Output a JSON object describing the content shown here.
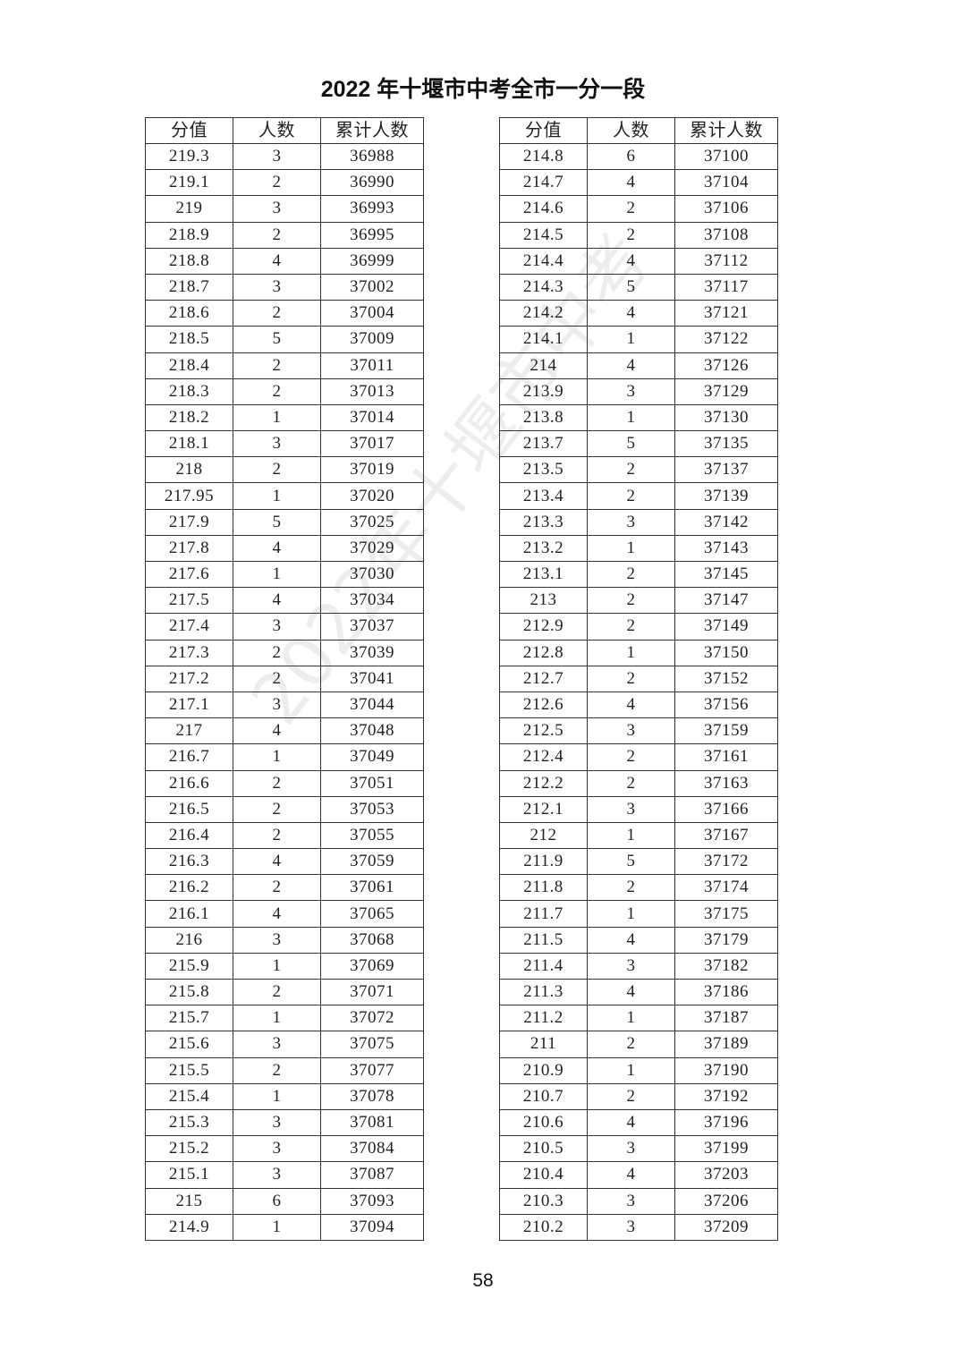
{
  "title": "2022 年十堰市中考全市一分一段",
  "page_number": "58",
  "watermark": "2022年十堰市中考",
  "headers": [
    "分值",
    "人数",
    "累计人数"
  ],
  "left_table": [
    [
      "219.3",
      "3",
      "36988"
    ],
    [
      "219.1",
      "2",
      "36990"
    ],
    [
      "219",
      "3",
      "36993"
    ],
    [
      "218.9",
      "2",
      "36995"
    ],
    [
      "218.8",
      "4",
      "36999"
    ],
    [
      "218.7",
      "3",
      "37002"
    ],
    [
      "218.6",
      "2",
      "37004"
    ],
    [
      "218.5",
      "5",
      "37009"
    ],
    [
      "218.4",
      "2",
      "37011"
    ],
    [
      "218.3",
      "2",
      "37013"
    ],
    [
      "218.2",
      "1",
      "37014"
    ],
    [
      "218.1",
      "3",
      "37017"
    ],
    [
      "218",
      "2",
      "37019"
    ],
    [
      "217.95",
      "1",
      "37020"
    ],
    [
      "217.9",
      "5",
      "37025"
    ],
    [
      "217.8",
      "4",
      "37029"
    ],
    [
      "217.6",
      "1",
      "37030"
    ],
    [
      "217.5",
      "4",
      "37034"
    ],
    [
      "217.4",
      "3",
      "37037"
    ],
    [
      "217.3",
      "2",
      "37039"
    ],
    [
      "217.2",
      "2",
      "37041"
    ],
    [
      "217.1",
      "3",
      "37044"
    ],
    [
      "217",
      "4",
      "37048"
    ],
    [
      "216.7",
      "1",
      "37049"
    ],
    [
      "216.6",
      "2",
      "37051"
    ],
    [
      "216.5",
      "2",
      "37053"
    ],
    [
      "216.4",
      "2",
      "37055"
    ],
    [
      "216.3",
      "4",
      "37059"
    ],
    [
      "216.2",
      "2",
      "37061"
    ],
    [
      "216.1",
      "4",
      "37065"
    ],
    [
      "216",
      "3",
      "37068"
    ],
    [
      "215.9",
      "1",
      "37069"
    ],
    [
      "215.8",
      "2",
      "37071"
    ],
    [
      "215.7",
      "1",
      "37072"
    ],
    [
      "215.6",
      "3",
      "37075"
    ],
    [
      "215.5",
      "2",
      "37077"
    ],
    [
      "215.4",
      "1",
      "37078"
    ],
    [
      "215.3",
      "3",
      "37081"
    ],
    [
      "215.2",
      "3",
      "37084"
    ],
    [
      "215.1",
      "3",
      "37087"
    ],
    [
      "215",
      "6",
      "37093"
    ],
    [
      "214.9",
      "1",
      "37094"
    ]
  ],
  "right_table": [
    [
      "214.8",
      "6",
      "37100"
    ],
    [
      "214.7",
      "4",
      "37104"
    ],
    [
      "214.6",
      "2",
      "37106"
    ],
    [
      "214.5",
      "2",
      "37108"
    ],
    [
      "214.4",
      "4",
      "37112"
    ],
    [
      "214.3",
      "5",
      "37117"
    ],
    [
      "214.2",
      "4",
      "37121"
    ],
    [
      "214.1",
      "1",
      "37122"
    ],
    [
      "214",
      "4",
      "37126"
    ],
    [
      "213.9",
      "3",
      "37129"
    ],
    [
      "213.8",
      "1",
      "37130"
    ],
    [
      "213.7",
      "5",
      "37135"
    ],
    [
      "213.5",
      "2",
      "37137"
    ],
    [
      "213.4",
      "2",
      "37139"
    ],
    [
      "213.3",
      "3",
      "37142"
    ],
    [
      "213.2",
      "1",
      "37143"
    ],
    [
      "213.1",
      "2",
      "37145"
    ],
    [
      "213",
      "2",
      "37147"
    ],
    [
      "212.9",
      "2",
      "37149"
    ],
    [
      "212.8",
      "1",
      "37150"
    ],
    [
      "212.7",
      "2",
      "37152"
    ],
    [
      "212.6",
      "4",
      "37156"
    ],
    [
      "212.5",
      "3",
      "37159"
    ],
    [
      "212.4",
      "2",
      "37161"
    ],
    [
      "212.2",
      "2",
      "37163"
    ],
    [
      "212.1",
      "3",
      "37166"
    ],
    [
      "212",
      "1",
      "37167"
    ],
    [
      "211.9",
      "5",
      "37172"
    ],
    [
      "211.8",
      "2",
      "37174"
    ],
    [
      "211.7",
      "1",
      "37175"
    ],
    [
      "211.5",
      "4",
      "37179"
    ],
    [
      "211.4",
      "3",
      "37182"
    ],
    [
      "211.3",
      "4",
      "37186"
    ],
    [
      "211.2",
      "1",
      "37187"
    ],
    [
      "211",
      "2",
      "37189"
    ],
    [
      "210.9",
      "1",
      "37190"
    ],
    [
      "210.7",
      "2",
      "37192"
    ],
    [
      "210.6",
      "4",
      "37196"
    ],
    [
      "210.5",
      "3",
      "37199"
    ],
    [
      "210.4",
      "4",
      "37203"
    ],
    [
      "210.3",
      "3",
      "37206"
    ],
    [
      "210.2",
      "3",
      "37209"
    ]
  ]
}
